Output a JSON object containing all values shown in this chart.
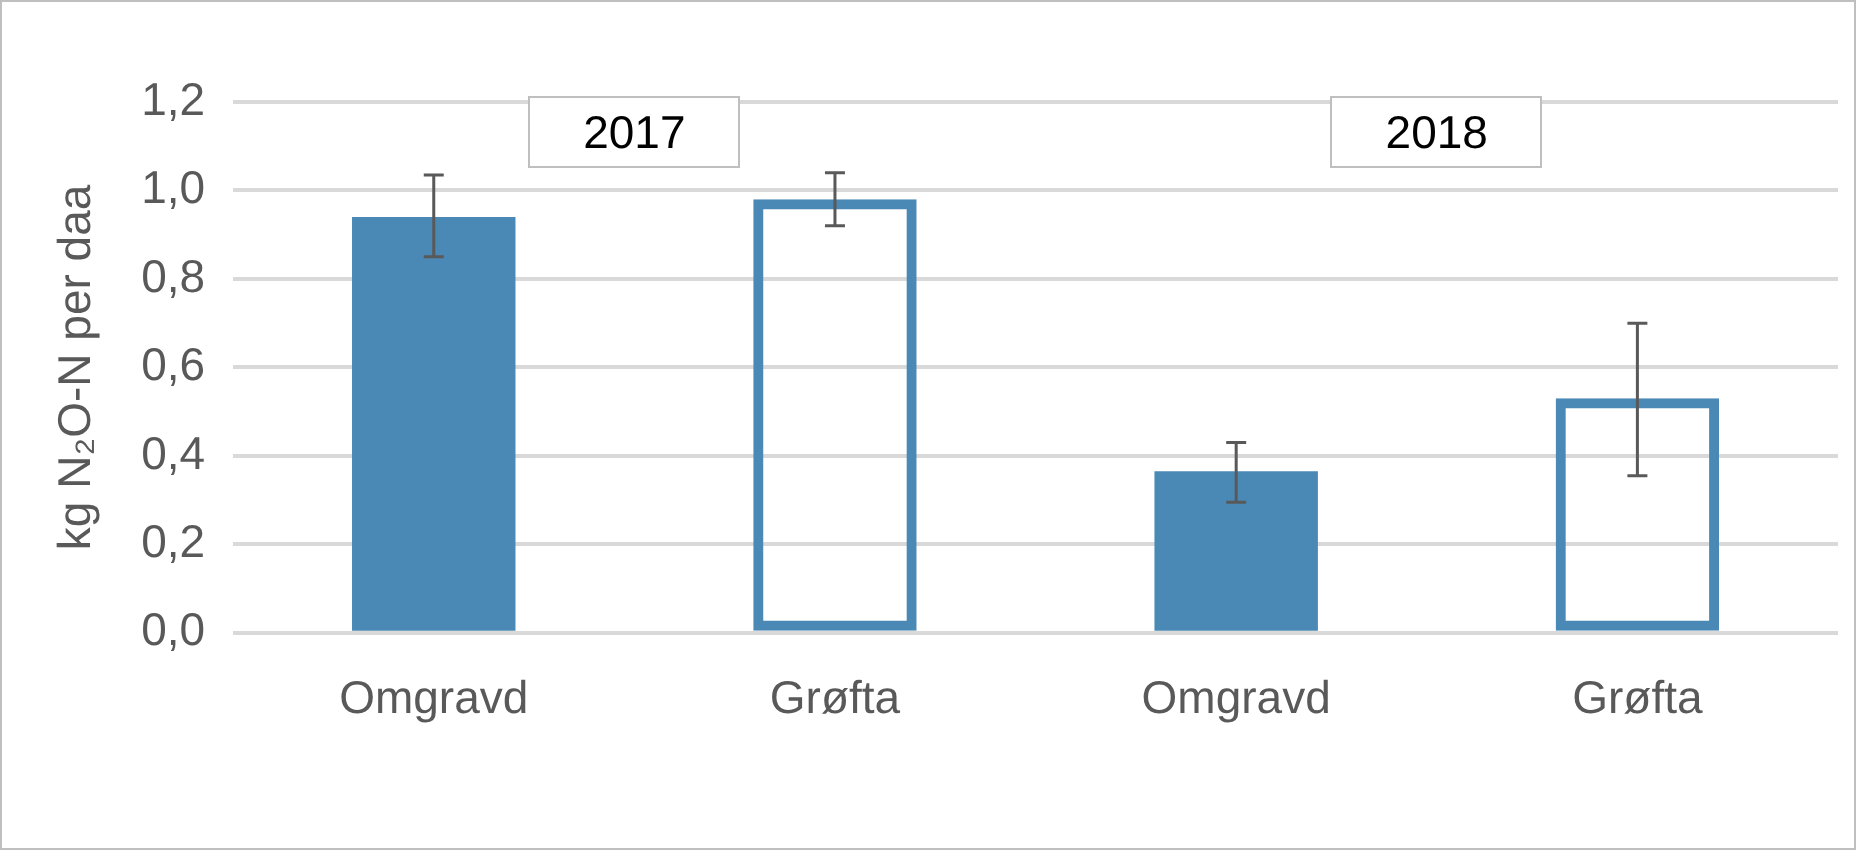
{
  "chart_data": {
    "type": "bar",
    "ylabel": "kg N₂O-N per daa",
    "categories": [
      "Omgravd",
      "Grøfta",
      "Omgravd",
      "Grøfta"
    ],
    "series": [
      {
        "color": "#4a88b5",
        "values": [
          0.94,
          null,
          0.365,
          null
        ],
        "errors": [
          [
            0.85,
            1.035
          ],
          null,
          [
            0.295,
            0.43
          ],
          null
        ]
      },
      {
        "color": "#4a88b5",
        "values": [
          null,
          0.98,
          null,
          0.53
        ],
        "errors": [
          null,
          [
            0.92,
            1.04
          ],
          null,
          [
            0.355,
            0.7
          ]
        ]
      }
    ],
    "ylim": [
      0,
      1.2
    ],
    "yticks": [
      {
        "value": 0,
        "label": "0,0"
      },
      {
        "value": 0.2,
        "label": "0,2"
      },
      {
        "value": 0.4,
        "label": "0,4"
      },
      {
        "value": 0.6,
        "label": "0,6"
      },
      {
        "value": 0.8,
        "label": "0,8"
      },
      {
        "value": 1,
        "label": "1,0"
      },
      {
        "value": 1.2,
        "label": "1,2"
      }
    ],
    "grid": "y",
    "legend": false,
    "annotations": [
      "2017",
      "2018"
    ]
  }
}
